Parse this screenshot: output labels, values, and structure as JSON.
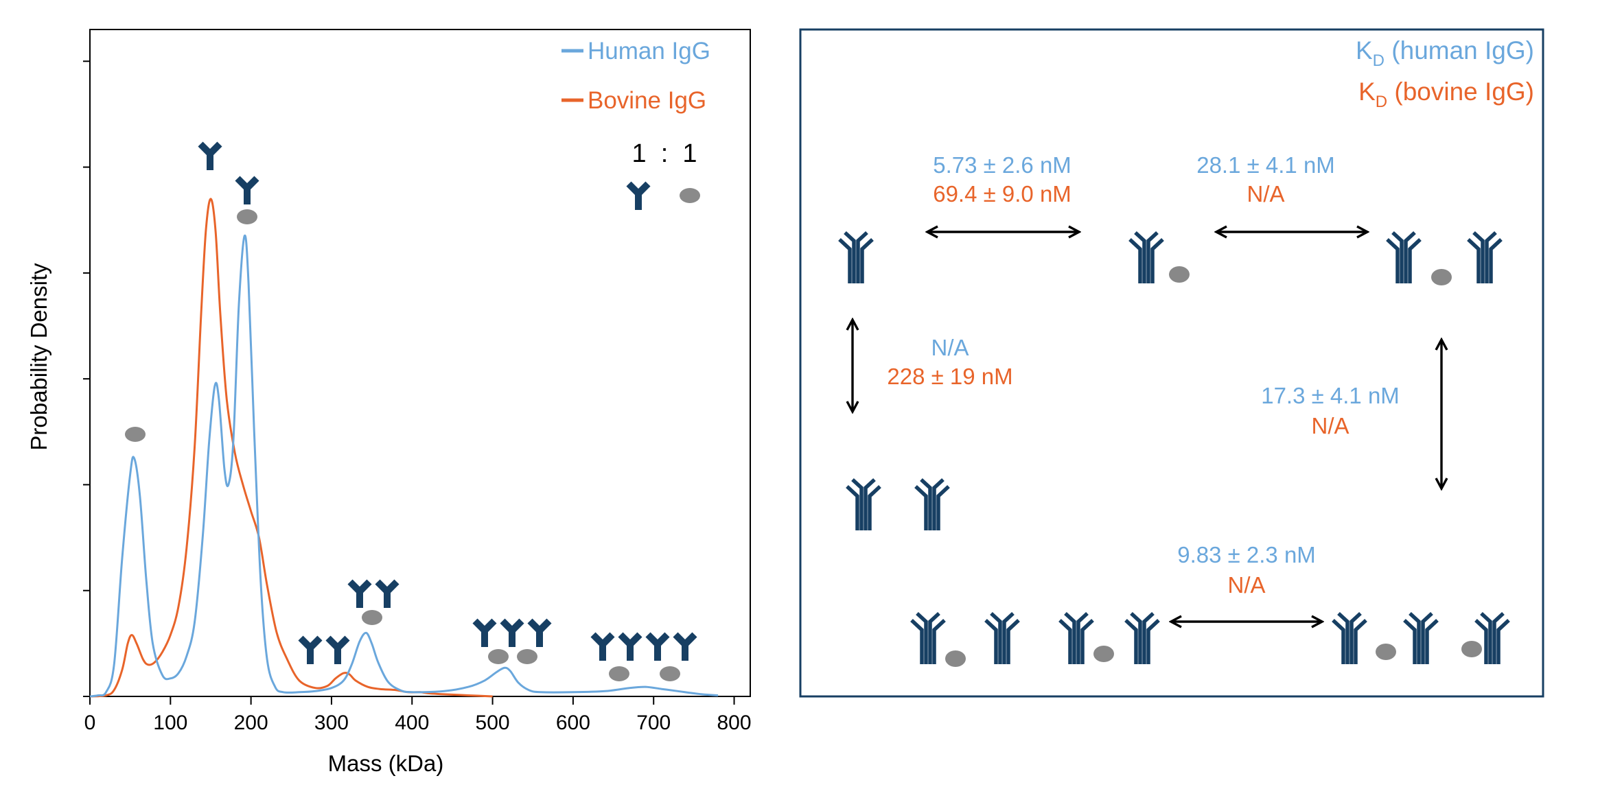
{
  "colors": {
    "human": "#6aa7dc",
    "bovine": "#e8642a",
    "antibody": "#173f63",
    "antigen": "#888888",
    "axis": "#000000"
  },
  "chart_data": {
    "type": "line",
    "xlabel": "Mass (kDa)",
    "ylabel": "Probability Density",
    "xlim": [
      0,
      820
    ],
    "ylim": [
      0,
      6.3
    ],
    "x_ticks": [
      0,
      100,
      200,
      300,
      400,
      500,
      600,
      700,
      800
    ],
    "y_ticks_count": 6,
    "y_tick_labels": false,
    "grid": false,
    "legend_position": "top-right",
    "stoichiometry_label": "1  :  1",
    "series": [
      {
        "name": "Human IgG",
        "color": "#6aa7dc",
        "points": [
          [
            0,
            0
          ],
          [
            10,
            0.01
          ],
          [
            20,
            0.04
          ],
          [
            30,
            0.3
          ],
          [
            40,
            1.3
          ],
          [
            50,
            2.1
          ],
          [
            55,
            2.25
          ],
          [
            62,
            1.9
          ],
          [
            70,
            1.1
          ],
          [
            78,
            0.5
          ],
          [
            90,
            0.2
          ],
          [
            100,
            0.17
          ],
          [
            110,
            0.22
          ],
          [
            120,
            0.38
          ],
          [
            130,
            0.7
          ],
          [
            140,
            1.5
          ],
          [
            148,
            2.4
          ],
          [
            155,
            2.93
          ],
          [
            160,
            2.82
          ],
          [
            167,
            2.15
          ],
          [
            172,
            2.0
          ],
          [
            178,
            2.4
          ],
          [
            185,
            3.7
          ],
          [
            192,
            4.35
          ],
          [
            197,
            3.9
          ],
          [
            204,
            2.5
          ],
          [
            212,
            1.1
          ],
          [
            220,
            0.35
          ],
          [
            230,
            0.09
          ],
          [
            240,
            0.04
          ],
          [
            260,
            0.04
          ],
          [
            280,
            0.05
          ],
          [
            300,
            0.08
          ],
          [
            315,
            0.15
          ],
          [
            325,
            0.3
          ],
          [
            335,
            0.52
          ],
          [
            343,
            0.6
          ],
          [
            350,
            0.5
          ],
          [
            358,
            0.32
          ],
          [
            370,
            0.14
          ],
          [
            385,
            0.06
          ],
          [
            400,
            0.04
          ],
          [
            440,
            0.05
          ],
          [
            470,
            0.09
          ],
          [
            490,
            0.15
          ],
          [
            505,
            0.23
          ],
          [
            515,
            0.27
          ],
          [
            522,
            0.24
          ],
          [
            532,
            0.13
          ],
          [
            545,
            0.06
          ],
          [
            560,
            0.04
          ],
          [
            600,
            0.04
          ],
          [
            640,
            0.05
          ],
          [
            670,
            0.08
          ],
          [
            690,
            0.09
          ],
          [
            710,
            0.07
          ],
          [
            730,
            0.05
          ],
          [
            760,
            0.02
          ],
          [
            780,
            0.01
          ]
        ]
      },
      {
        "name": "Bovine IgG",
        "color": "#e8642a",
        "points": [
          [
            0,
            0
          ],
          [
            20,
            0.01
          ],
          [
            30,
            0.06
          ],
          [
            40,
            0.25
          ],
          [
            47,
            0.5
          ],
          [
            52,
            0.58
          ],
          [
            58,
            0.5
          ],
          [
            66,
            0.35
          ],
          [
            72,
            0.3
          ],
          [
            80,
            0.32
          ],
          [
            90,
            0.42
          ],
          [
            100,
            0.58
          ],
          [
            110,
            0.85
          ],
          [
            120,
            1.4
          ],
          [
            130,
            2.35
          ],
          [
            138,
            3.6
          ],
          [
            144,
            4.4
          ],
          [
            150,
            4.7
          ],
          [
            156,
            4.4
          ],
          [
            162,
            3.6
          ],
          [
            170,
            2.8
          ],
          [
            180,
            2.3
          ],
          [
            190,
            2.0
          ],
          [
            200,
            1.75
          ],
          [
            210,
            1.5
          ],
          [
            220,
            1.05
          ],
          [
            232,
            0.6
          ],
          [
            245,
            0.35
          ],
          [
            260,
            0.15
          ],
          [
            280,
            0.08
          ],
          [
            295,
            0.1
          ],
          [
            305,
            0.17
          ],
          [
            315,
            0.22
          ],
          [
            322,
            0.21
          ],
          [
            330,
            0.15
          ],
          [
            345,
            0.09
          ],
          [
            360,
            0.07
          ],
          [
            380,
            0.06
          ],
          [
            395,
            0.04
          ],
          [
            410,
            0.04
          ],
          [
            420,
            0.03
          ],
          [
            440,
            0.02
          ],
          [
            470,
            0.01
          ],
          [
            500,
            0
          ]
        ]
      }
    ]
  },
  "kinetics_panel": {
    "legend": {
      "human": {
        "prefix": "K",
        "sub": "D",
        "suffix": " (human IgG)"
      },
      "bovine": {
        "prefix": "K",
        "sub": "D",
        "suffix": " (bovine IgG)"
      }
    },
    "transitions": [
      {
        "human": "5.73 ± 2.6 nM",
        "bovine": "69.4 ± 9.0 nM"
      },
      {
        "human": "28.1 ± 4.1 nM",
        "bovine": "N/A"
      },
      {
        "human": "N/A",
        "bovine": "228 ± 19 nM"
      },
      {
        "human": "17.3 ± 4.1 nM",
        "bovine": "N/A"
      },
      {
        "human": "9.83 ± 2.3 nM",
        "bovine": "N/A"
      }
    ]
  }
}
